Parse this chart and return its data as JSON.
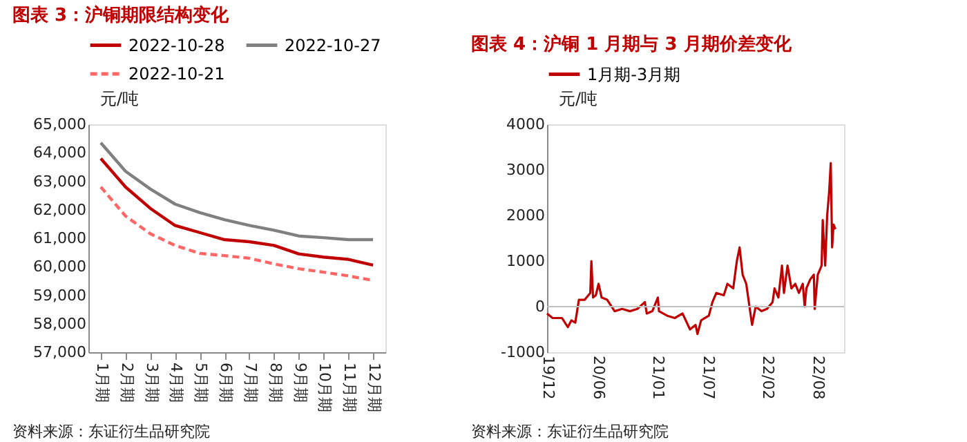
{
  "chart_data": [
    {
      "type": "line",
      "title": "图表 3：沪铜期限结构变化",
      "ylabel": "元/吨",
      "categories": [
        "1月期",
        "2月期",
        "3月期",
        "4月期",
        "5月期",
        "6月期",
        "7月期",
        "8月期",
        "9月期",
        "10月期",
        "11月期",
        "12月期"
      ],
      "series": [
        {
          "name": "2022-10-28",
          "color": "#c00000",
          "line_style": "solid",
          "values": [
            63800,
            62800,
            62050,
            61450,
            61200,
            60950,
            60880,
            60750,
            60450,
            60340,
            60260,
            60060
          ]
        },
        {
          "name": "2022-10-27",
          "color": "#808080",
          "line_style": "solid",
          "values": [
            64350,
            63350,
            62730,
            62200,
            61900,
            61650,
            61450,
            61280,
            61080,
            61020,
            60950,
            60950
          ]
        },
        {
          "name": "2022-10-21",
          "color": "#ff6666",
          "line_style": "dashed",
          "values": [
            62800,
            61780,
            61160,
            60750,
            60470,
            60390,
            60300,
            60100,
            59930,
            59810,
            59680,
            59520
          ]
        }
      ],
      "ylim": [
        57000,
        65000
      ],
      "yticks": [
        {
          "value": 57000,
          "label": "57,000"
        },
        {
          "value": 58000,
          "label": "58,000"
        },
        {
          "value": 59000,
          "label": "59,000"
        },
        {
          "value": 60000,
          "label": "60,000"
        },
        {
          "value": 61000,
          "label": "61,000"
        },
        {
          "value": 62000,
          "label": "62,000"
        },
        {
          "value": 63000,
          "label": "63,000"
        },
        {
          "value": 64000,
          "label": "64,000"
        },
        {
          "value": 65000,
          "label": "65,000"
        }
      ],
      "legend": "top",
      "grid": false,
      "annotations": [
        "资料来源：东证衍生品研究院"
      ]
    },
    {
      "type": "line",
      "title": "图表 4：沪铜 1 月期与 3 月期价差变化",
      "ylabel": "元/吨",
      "x": [
        "2019-12-01",
        "2019-12-21",
        "2020-01-24",
        "2020-02-14",
        "2020-02-27",
        "2020-03-12",
        "2020-03-25",
        "2020-04-15",
        "2020-05-05",
        "2020-05-09",
        "2020-05-15",
        "2020-05-25",
        "2020-06-04",
        "2020-06-15",
        "2020-07-05",
        "2020-08-01",
        "2020-08-28",
        "2020-09-25",
        "2020-10-22",
        "2020-11-18",
        "2020-11-25",
        "2020-12-15",
        "2021-01-04",
        "2021-01-08",
        "2021-02-07",
        "2021-03-06",
        "2021-04-03",
        "2021-04-30",
        "2021-05-20",
        "2021-05-27",
        "2021-06-09",
        "2021-07-07",
        "2021-07-20",
        "2021-08-03",
        "2021-08-30",
        "2021-09-12",
        "2021-10-03",
        "2021-10-16",
        "2021-10-26",
        "2021-11-06",
        "2021-11-19",
        "2021-12-03",
        "2021-12-10",
        "2021-12-23",
        "2022-01-13",
        "2022-02-02",
        "2022-02-22",
        "2022-03-01",
        "2022-03-15",
        "2022-03-28",
        "2022-04-04",
        "2022-04-17",
        "2022-05-01",
        "2022-05-15",
        "2022-05-28",
        "2022-06-11",
        "2022-06-18",
        "2022-06-24",
        "2022-07-08",
        "2022-07-21",
        "2022-07-24",
        "2022-08-04",
        "2022-08-18",
        "2022-08-22",
        "2022-08-31",
        "2022-09-07",
        "2022-09-14",
        "2022-09-20",
        "2022-09-25",
        "2022-09-30",
        "2022-10-07"
      ],
      "series": [
        {
          "name": "1月期-3月期",
          "color": "#c00000",
          "line_style": "solid",
          "values": [
            -150,
            -250,
            -250,
            -450,
            -300,
            -350,
            150,
            150,
            300,
            1000,
            200,
            250,
            500,
            200,
            150,
            -100,
            -50,
            -100,
            -50,
            100,
            -150,
            -100,
            200,
            -100,
            -200,
            -250,
            -150,
            -500,
            -400,
            -600,
            -300,
            -200,
            100,
            300,
            250,
            500,
            400,
            1000,
            1300,
            700,
            500,
            -100,
            -400,
            0,
            -100,
            -50,
            100,
            400,
            200,
            900,
            300,
            900,
            400,
            500,
            300,
            500,
            0,
            400,
            600,
            700,
            -50,
            700,
            900,
            1900,
            900,
            2000,
            2500,
            3150,
            1300,
            1800,
            1700
          ]
        }
      ],
      "xlim": [
        "2019-12-01",
        "2022-11-07"
      ],
      "xticks": [
        {
          "value": "2019-12-01",
          "label": "19/12"
        },
        {
          "value": "2020-06-01",
          "label": "20/06"
        },
        {
          "value": "2021-01-01",
          "label": "21/01"
        },
        {
          "value": "2021-07-01",
          "label": "21/07"
        },
        {
          "value": "2022-02-01",
          "label": "22/02"
        },
        {
          "value": "2022-08-01",
          "label": "22/08"
        }
      ],
      "ylim": [
        -1000,
        4000
      ],
      "yticks": [
        -1000,
        0,
        1000,
        2000,
        3000,
        4000
      ],
      "ref_lines": [
        {
          "axis": "y",
          "value": 0,
          "color": "#bfbfbf"
        }
      ],
      "legend": "top",
      "grid": false,
      "annotations": [
        "资料来源：东证衍生品研究院"
      ]
    }
  ]
}
